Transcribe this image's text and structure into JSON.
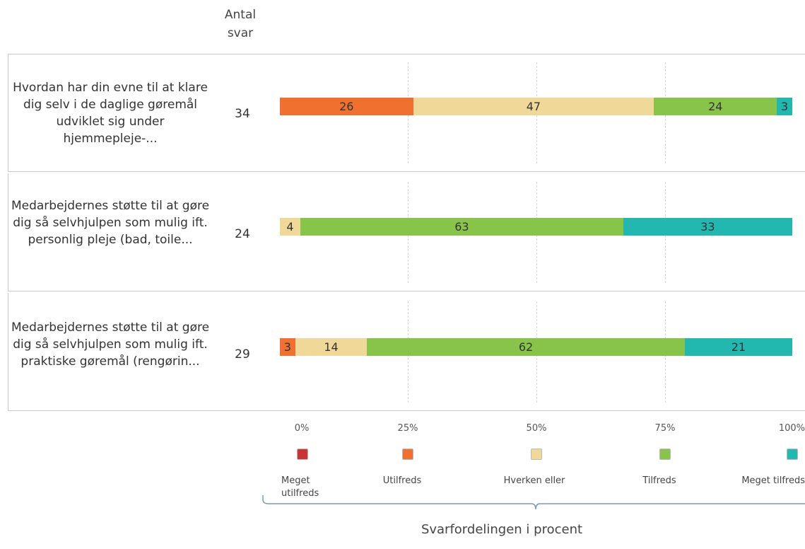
{
  "header": {
    "count_label": "Antal svar"
  },
  "chart_data": {
    "type": "bar",
    "orientation": "horizontal",
    "stacked": true,
    "categories": [
      "Hvordan har din evne til at klare dig selv i de daglige gøremål udviklet sig under hjemmepleje-...",
      "Medarbejdernes støtte til at gøre dig så selvhjulpen som mulig ift. personlig pleje (bad, toile...",
      "Medarbejdernes støtte til at gøre dig så selvhjulpen som mulig ift. praktiske gøremål (rengørin..."
    ],
    "counts": [
      34,
      24,
      29
    ],
    "series": [
      {
        "name": "Meget utilfreds",
        "color": "#cc3333",
        "values": [
          0,
          0,
          0
        ]
      },
      {
        "name": "Utilfreds",
        "color": "#f07030",
        "values": [
          26,
          0,
          3
        ]
      },
      {
        "name": "Hverken eller",
        "color": "#f0d898",
        "values": [
          47,
          4,
          14
        ]
      },
      {
        "name": "Tilfreds",
        "color": "#88c44a",
        "values": [
          24,
          63,
          62
        ]
      },
      {
        "name": "Meget tilfreds",
        "color": "#22b8b0",
        "values": [
          3,
          33,
          21
        ]
      }
    ],
    "xlim": [
      0,
      100
    ],
    "xticks": [
      "0%",
      "25%",
      "50%",
      "75%",
      "100%"
    ],
    "xlabel": "Svarfordelingen i procent",
    "grid": true,
    "legend": "bottom"
  }
}
